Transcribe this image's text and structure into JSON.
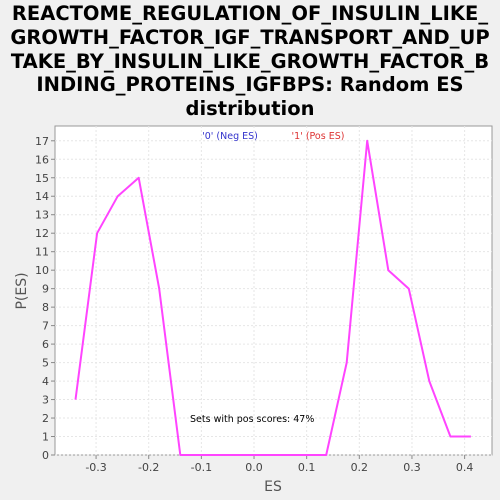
{
  "chart_data": {
    "type": "line",
    "title_lines": [
      "REACTOME_REGULATION_OF_INSULIN_LIKE_",
      "GROWTH_FACTOR_IGF_TRANSPORT_AND_UP",
      "TAKE_BY_INSULIN_LIKE_GROWTH_FACTOR_B",
      "INDING_PROTEINS_IGFBPS: Random ES",
      "distribution"
    ],
    "xlabel": "ES",
    "ylabel": "P(ES)",
    "xlim": [
      -0.378,
      0.452
    ],
    "ylim": [
      0,
      17.8
    ],
    "x_ticks": [
      -0.3,
      -0.2,
      -0.1,
      0.0,
      0.1,
      0.2,
      0.3,
      0.4
    ],
    "x_tick_labels": [
      "-0.3",
      "-0.2",
      "-0.1",
      "0.0",
      "0.1",
      "0.2",
      "0.3",
      "0.4"
    ],
    "y_ticks": [
      0,
      1,
      2,
      3,
      4,
      5,
      6,
      7,
      8,
      9,
      10,
      11,
      12,
      13,
      14,
      15,
      16,
      17
    ],
    "grid": true,
    "legend": [
      {
        "label": "'0' (Neg ES)",
        "color": "#3333cc"
      },
      {
        "label": "'1' (Pos ES)",
        "color": "#dd3333"
      }
    ],
    "legend_placement": "top-center",
    "annotation": "Sets with pos scores: 47%",
    "series": [
      {
        "color": "#ff44ff",
        "x": [
          -0.339,
          -0.298,
          -0.259,
          -0.219,
          -0.18,
          -0.14,
          0.137,
          0.176,
          0.215,
          0.255,
          0.294,
          0.333,
          0.373,
          0.412
        ],
        "y": [
          3,
          12,
          14,
          15,
          9,
          0,
          0,
          5,
          17,
          10,
          9,
          4,
          1,
          1
        ]
      }
    ]
  }
}
